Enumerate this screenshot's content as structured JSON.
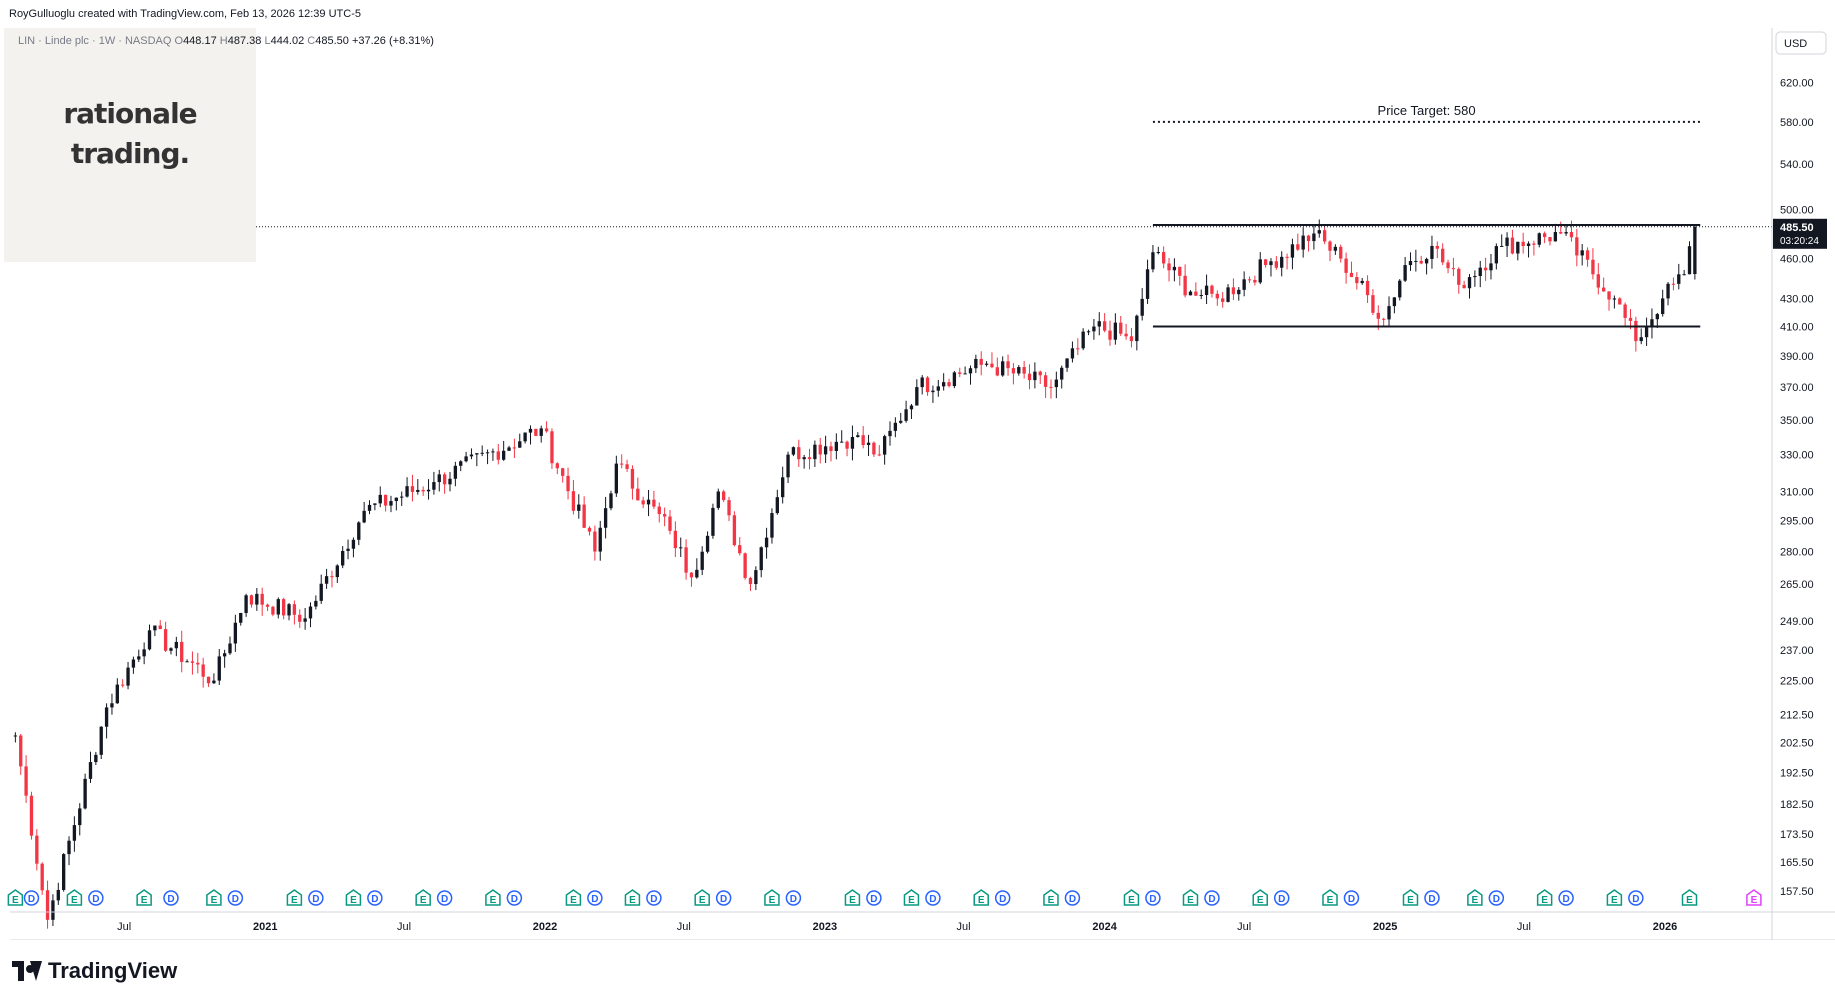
{
  "header": {
    "credit": "RoyGulluoglu created with TradingView.com, Feb 13, 2026 12:39 UTC-5"
  },
  "symbol_line": {
    "name": "LIN · Linde plc · 1W · NASDAQ",
    "open_label": "O",
    "open": "448.17",
    "high_label": "H",
    "high": "487.38",
    "low_label": "L",
    "low": "444.02",
    "close_label": "C",
    "close": "485.50",
    "change": "+37.26 (+8.31%)"
  },
  "watermark": {
    "line1": "rationale",
    "line2": "trading."
  },
  "currency": "USD",
  "last_price": {
    "value": "485.50",
    "countdown": "03:20:24"
  },
  "footer": {
    "brand": "TradingView"
  },
  "colors": {
    "up": "#131722",
    "down": "#f23645",
    "axis_text": "#131722",
    "price_tag_bg": "#131722",
    "earnings": "#089981",
    "dividends": "#2962ff",
    "upcoming_earnings": "#e040fb"
  },
  "chart_data": {
    "type": "candlestick",
    "timeframe": "1W",
    "y_scale": "log",
    "y_ticks": [
      620,
      580,
      540,
      500,
      460,
      430,
      410,
      390,
      370,
      350,
      330,
      310,
      295,
      280,
      265,
      249,
      237,
      225,
      212.5,
      202.5,
      192.5,
      182.5,
      173.5,
      165.5,
      157.5
    ],
    "y_tick_labels": [
      "620.00",
      "580.00",
      "540.00",
      "500.00",
      "460.00",
      "430.00",
      "410.00",
      "390.00",
      "370.00",
      "350.00",
      "330.00",
      "310.00",
      "295.00",
      "280.00",
      "265.00",
      "249.00",
      "237.00",
      "225.00",
      "212.50",
      "202.50",
      "192.50",
      "182.50",
      "173.50",
      "165.50",
      "157.50"
    ],
    "x_labels": [
      {
        "label": "Jul",
        "date": "2020-07-01"
      },
      {
        "label": "2021",
        "date": "2021-01-01"
      },
      {
        "label": "Jul",
        "date": "2021-07-01"
      },
      {
        "label": "2022",
        "date": "2022-01-01"
      },
      {
        "label": "Jul",
        "date": "2022-07-01"
      },
      {
        "label": "2023",
        "date": "2023-01-01"
      },
      {
        "label": "Jul",
        "date": "2023-07-01"
      },
      {
        "label": "2024",
        "date": "2024-01-01"
      },
      {
        "label": "Jul",
        "date": "2024-07-01"
      },
      {
        "label": "2025",
        "date": "2025-01-01"
      },
      {
        "label": "Jul",
        "date": "2025-07-01"
      },
      {
        "label": "2026",
        "date": "2026-01-01"
      }
    ],
    "x_range": [
      "2020-02-03",
      "2026-05-18"
    ],
    "key_closes": [
      {
        "date": "2020-02-10",
        "close": 205
      },
      {
        "date": "2020-03-23",
        "close": 150
      },
      {
        "date": "2020-06-08",
        "close": 215
      },
      {
        "date": "2020-08-03",
        "close": 245
      },
      {
        "date": "2020-10-26",
        "close": 225
      },
      {
        "date": "2020-12-07",
        "close": 260
      },
      {
        "date": "2021-02-22",
        "close": 250
      },
      {
        "date": "2021-05-10",
        "close": 300
      },
      {
        "date": "2021-08-09",
        "close": 315
      },
      {
        "date": "2021-12-27",
        "close": 345
      },
      {
        "date": "2022-03-07",
        "close": 280
      },
      {
        "date": "2022-04-04",
        "close": 325
      },
      {
        "date": "2022-06-13",
        "close": 290
      },
      {
        "date": "2022-07-11",
        "close": 268
      },
      {
        "date": "2022-08-15",
        "close": 310
      },
      {
        "date": "2022-09-26",
        "close": 265
      },
      {
        "date": "2022-11-14",
        "close": 330
      },
      {
        "date": "2023-02-06",
        "close": 340
      },
      {
        "date": "2023-03-13",
        "close": 330
      },
      {
        "date": "2023-05-01",
        "close": 370
      },
      {
        "date": "2023-07-31",
        "close": 385
      },
      {
        "date": "2023-10-23",
        "close": 370
      },
      {
        "date": "2023-12-18",
        "close": 410
      },
      {
        "date": "2024-01-22",
        "close": 405
      },
      {
        "date": "2024-02-05",
        "close": 400
      },
      {
        "date": "2024-03-04",
        "close": 465
      },
      {
        "date": "2024-04-22",
        "close": 435
      },
      {
        "date": "2024-05-27",
        "close": 430
      },
      {
        "date": "2024-07-29",
        "close": 455
      },
      {
        "date": "2024-09-30",
        "close": 480
      },
      {
        "date": "2024-11-04",
        "close": 460
      },
      {
        "date": "2024-12-30",
        "close": 415
      },
      {
        "date": "2025-01-27",
        "close": 455
      },
      {
        "date": "2025-03-03",
        "close": 470
      },
      {
        "date": "2025-04-07",
        "close": 440
      },
      {
        "date": "2025-06-02",
        "close": 470
      },
      {
        "date": "2025-08-18",
        "close": 480
      },
      {
        "date": "2025-10-27",
        "close": 430
      },
      {
        "date": "2025-11-24",
        "close": 400
      },
      {
        "date": "2025-12-29",
        "close": 430
      },
      {
        "date": "2026-01-26",
        "close": 448
      },
      {
        "date": "2026-02-09",
        "close": 485.5
      }
    ],
    "last_candle": {
      "date": "2026-02-09",
      "open": 448.17,
      "high": 487.38,
      "low": 444.02,
      "close": 485.5
    },
    "annotations": [
      {
        "type": "horizontal_line",
        "style": "dotted",
        "price": 580,
        "from": "2024-03-04",
        "to": "2026-02-16",
        "label": "Price Target: 580"
      },
      {
        "type": "horizontal_line",
        "style": "solid",
        "price": 487,
        "from": "2024-03-04",
        "to": "2026-02-16",
        "label": ""
      },
      {
        "type": "horizontal_line",
        "style": "solid",
        "price": 410,
        "from": "2024-03-04",
        "to": "2026-02-16",
        "label": ""
      }
    ],
    "event_markers": [
      {
        "type": "E",
        "date": "2020-02-10"
      },
      {
        "type": "D",
        "date": "2020-03-02"
      },
      {
        "type": "E",
        "date": "2020-04-27"
      },
      {
        "type": "D",
        "date": "2020-05-25"
      },
      {
        "type": "E",
        "date": "2020-07-27"
      },
      {
        "type": "D",
        "date": "2020-08-31"
      },
      {
        "type": "E",
        "date": "2020-10-26"
      },
      {
        "type": "D",
        "date": "2020-11-23"
      },
      {
        "type": "E",
        "date": "2021-02-08"
      },
      {
        "type": "D",
        "date": "2021-03-08"
      },
      {
        "type": "E",
        "date": "2021-04-26"
      },
      {
        "type": "D",
        "date": "2021-05-24"
      },
      {
        "type": "E",
        "date": "2021-07-26"
      },
      {
        "type": "D",
        "date": "2021-08-23"
      },
      {
        "type": "E",
        "date": "2021-10-25"
      },
      {
        "type": "D",
        "date": "2021-11-22"
      },
      {
        "type": "E",
        "date": "2022-02-07"
      },
      {
        "type": "D",
        "date": "2022-03-07"
      },
      {
        "type": "E",
        "date": "2022-04-25"
      },
      {
        "type": "D",
        "date": "2022-05-23"
      },
      {
        "type": "E",
        "date": "2022-07-25"
      },
      {
        "type": "D",
        "date": "2022-08-22"
      },
      {
        "type": "E",
        "date": "2022-10-24"
      },
      {
        "type": "D",
        "date": "2022-11-21"
      },
      {
        "type": "E",
        "date": "2023-02-06"
      },
      {
        "type": "D",
        "date": "2023-03-06"
      },
      {
        "type": "E",
        "date": "2023-04-24"
      },
      {
        "type": "D",
        "date": "2023-05-22"
      },
      {
        "type": "E",
        "date": "2023-07-24"
      },
      {
        "type": "D",
        "date": "2023-08-21"
      },
      {
        "type": "E",
        "date": "2023-10-23"
      },
      {
        "type": "D",
        "date": "2023-11-20"
      },
      {
        "type": "E",
        "date": "2024-02-05"
      },
      {
        "type": "D",
        "date": "2024-03-04"
      },
      {
        "type": "E",
        "date": "2024-04-22"
      },
      {
        "type": "D",
        "date": "2024-05-20"
      },
      {
        "type": "E",
        "date": "2024-07-22"
      },
      {
        "type": "D",
        "date": "2024-08-19"
      },
      {
        "type": "E",
        "date": "2024-10-21"
      },
      {
        "type": "D",
        "date": "2024-11-18"
      },
      {
        "type": "E",
        "date": "2025-02-03"
      },
      {
        "type": "D",
        "date": "2025-03-03"
      },
      {
        "type": "E",
        "date": "2025-04-28"
      },
      {
        "type": "D",
        "date": "2025-05-26"
      },
      {
        "type": "E",
        "date": "2025-07-28"
      },
      {
        "type": "D",
        "date": "2025-08-25"
      },
      {
        "type": "E",
        "date": "2025-10-27"
      },
      {
        "type": "D",
        "date": "2025-11-24"
      },
      {
        "type": "E",
        "date": "2026-02-02"
      },
      {
        "type": "E-upcoming",
        "date": "2026-04-27"
      }
    ]
  }
}
